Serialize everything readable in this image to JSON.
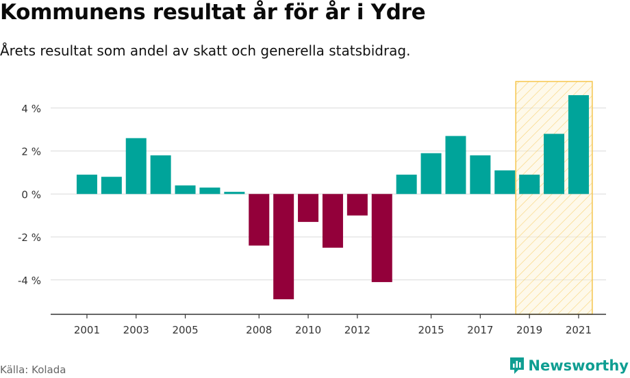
{
  "title": "Kommunens resultat år för år i Ydre",
  "subtitle": "Årets resultat som andel av skatt och generella statsbidrag.",
  "source": "Källa: Kolada",
  "brand": "Newsworthy",
  "colors": {
    "positive": "#00a49a",
    "negative": "#93003a",
    "highlight_fill": "#fdf2d0",
    "highlight_stroke": "#f5c54d",
    "grid": "#d9d9d9",
    "axis": "#333333",
    "brand": "#0f9e92"
  },
  "chart_data": {
    "type": "bar",
    "categories": [
      "2001",
      "2002",
      "2003",
      "2004",
      "2005",
      "2006",
      "2007",
      "2008",
      "2009",
      "2010",
      "2011",
      "2012",
      "2013",
      "2014",
      "2015",
      "2016",
      "2017",
      "2018",
      "2019",
      "2020",
      "2021"
    ],
    "values": [
      0.9,
      0.8,
      2.6,
      1.8,
      0.4,
      0.3,
      0.1,
      -2.4,
      -4.9,
      -1.3,
      -2.5,
      -1.0,
      -4.1,
      0.9,
      1.9,
      2.7,
      1.8,
      1.1,
      0.9,
      2.8,
      4.6
    ],
    "x_tick_labels": [
      "2001",
      "2003",
      "2005",
      "2008",
      "2010",
      "2012",
      "2015",
      "2017",
      "2019",
      "2021"
    ],
    "y_ticks": [
      4,
      2,
      0,
      -2,
      -4
    ],
    "y_tick_labels": [
      "4 %",
      "2 %",
      "0 %",
      "-2 %",
      "-4 %"
    ],
    "ylim": [
      -5.6,
      5.3
    ],
    "highlight_categories": [
      "2019",
      "2020",
      "2021"
    ],
    "grid": true,
    "legend": "none"
  }
}
